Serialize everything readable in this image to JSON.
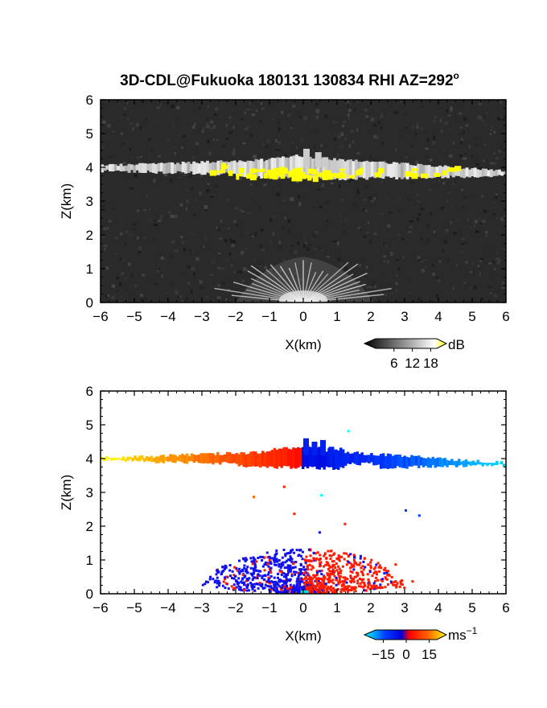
{
  "figure": {
    "title_main": "3D-CDL@Fukuoka 180131 130834 RHI AZ=292",
    "title_deg": "o"
  },
  "chart_data": [
    {
      "type": "heatmap",
      "quantity": "signal-to-noise ratio",
      "xlabel": "X(km)",
      "ylabel": "Z(km)",
      "xlim": [
        -6,
        6
      ],
      "ylim": [
        0,
        6
      ],
      "xticks": [
        -6,
        -5,
        -4,
        -3,
        -2,
        -1,
        0,
        1,
        2,
        3,
        4,
        5,
        6
      ],
      "yticks": [
        0,
        1,
        2,
        3,
        4,
        5,
        6
      ],
      "background_color": "#2a2a2a",
      "colorbar": {
        "unit": "dB",
        "ticks": [
          6,
          12,
          18
        ],
        "range": [
          0,
          20
        ],
        "colors": [
          "#000000",
          "#ffffff",
          "#ffff00"
        ]
      },
      "features": [
        {
          "name": "cloud layer",
          "x": [
            -6,
            6
          ],
          "z_bottom_left": 3.85,
          "z_top_left": 4.05,
          "z_bottom_center": 3.7,
          "z_top_center": 4.3,
          "z_bottom_right": 3.75,
          "z_top_right": 3.9
        },
        {
          "name": "strong echo",
          "x": [
            -2.8,
            4.6
          ],
          "z": [
            3.65,
            4.2
          ],
          "value_db": 18
        },
        {
          "name": "near-ground fan",
          "origin": [
            0,
            0
          ],
          "radius_km": 2.0,
          "z_top": 1.3
        }
      ]
    },
    {
      "type": "heatmap",
      "quantity": "Doppler velocity",
      "xlabel": "X(km)",
      "ylabel": "Z(km)",
      "xlim": [
        -6,
        6
      ],
      "ylim": [
        0,
        6
      ],
      "xticks": [
        -6,
        -5,
        -4,
        -3,
        -2,
        -1,
        0,
        1,
        2,
        3,
        4,
        5,
        6
      ],
      "yticks": [
        0,
        1,
        2,
        3,
        4,
        5,
        6
      ],
      "colorbar": {
        "unit": "ms",
        "unit_exponent": "−1",
        "ticks": [
          "−15",
          "0",
          "15"
        ],
        "tick_values": [
          -15,
          0,
          15
        ],
        "range": [
          -20,
          20
        ],
        "colors": [
          "#00ffff",
          "#0040ff",
          "#0000dd",
          "#ff0000",
          "#ff6600",
          "#ffff00"
        ]
      },
      "features": [
        {
          "name": "cloud layer positive",
          "x": [
            -6,
            -0.1
          ],
          "velocity_ms": [
            20,
            3
          ]
        },
        {
          "name": "cloud layer negative",
          "x": [
            -0.1,
            6
          ],
          "velocity_ms": [
            -3,
            -18
          ]
        },
        {
          "name": "near-ground negative",
          "x": [
            -2.0,
            0
          ],
          "z": [
            0,
            1.4
          ]
        },
        {
          "name": "near-ground positive",
          "x": [
            0,
            3.2
          ],
          "z": [
            0,
            1.4
          ]
        }
      ]
    }
  ]
}
